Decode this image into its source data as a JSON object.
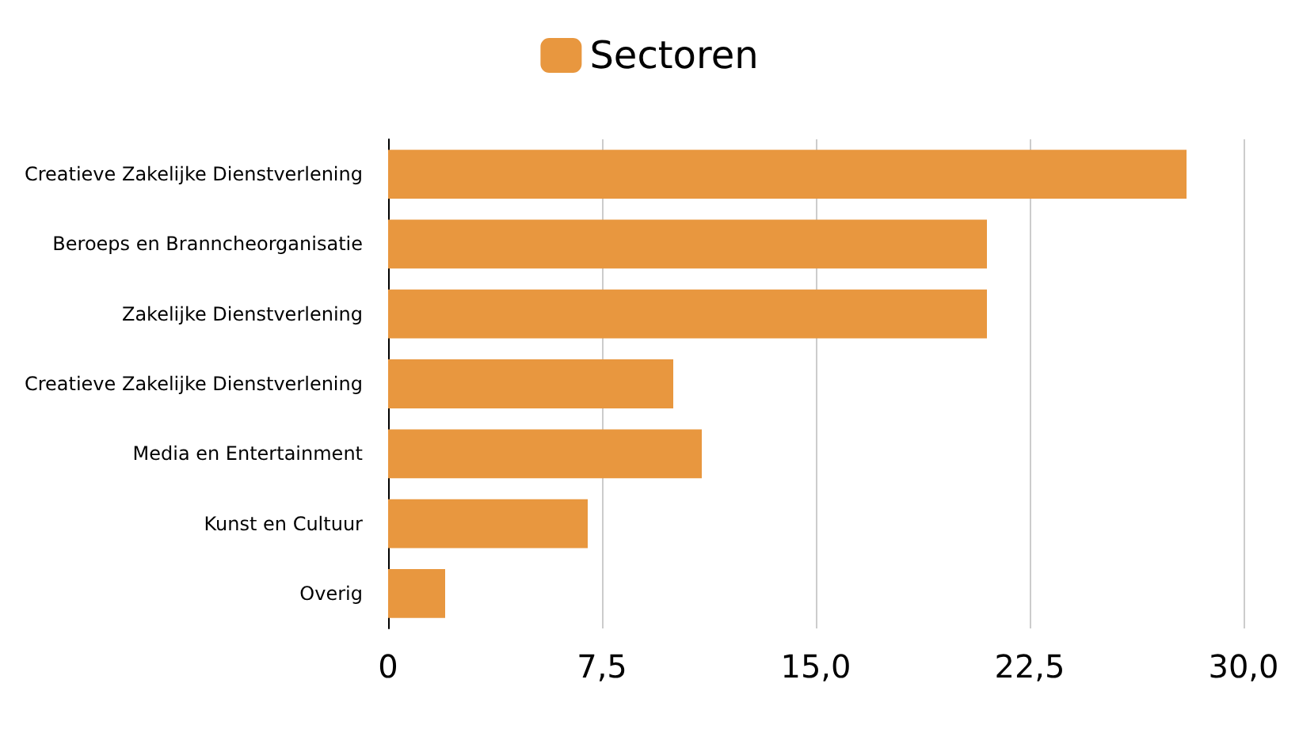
{
  "chart_data": {
    "type": "bar",
    "orientation": "horizontal",
    "categories": [
      "Creatieve Zakelijke Dienstverlening",
      "Beroeps en Branncheorganisatie",
      "Zakelijke Dienstverlening",
      "Creatieve Zakelijke Dienstverlening",
      "Media en Entertainment",
      "Kunst en Cultuur",
      "Overig"
    ],
    "series": [
      {
        "name": "Sectoren",
        "color": "#e8973f",
        "values": [
          28,
          21,
          21,
          10,
          11,
          7,
          2
        ]
      }
    ],
    "xlim": [
      0,
      30
    ],
    "xticks": [
      0,
      {
        "value": 7.5,
        "label": "7,5"
      },
      {
        "value": 15,
        "label": "15,0"
      },
      {
        "value": 22.5,
        "label": "22,5"
      },
      {
        "value": 30,
        "label": "30,0"
      }
    ],
    "grid": "x",
    "legend": "top"
  }
}
